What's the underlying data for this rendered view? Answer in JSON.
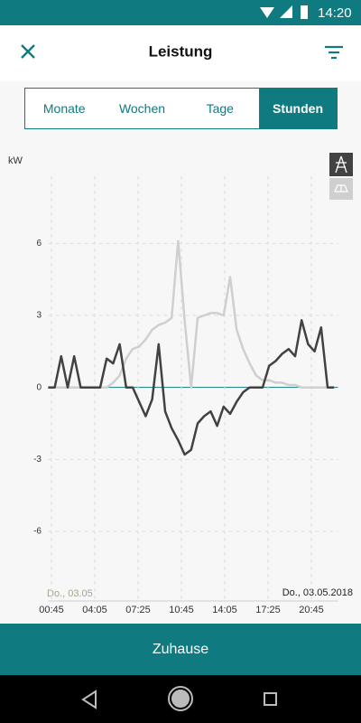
{
  "status": {
    "time": "14:20"
  },
  "header": {
    "title": "Leistung"
  },
  "tabs": {
    "items": [
      "Monate",
      "Wochen",
      "Tage",
      "Stunden"
    ],
    "selected": 3
  },
  "chart_data": {
    "type": "line",
    "y_label": "kW",
    "start_date_label": "Do., 03.05",
    "end_date_label": "Do., 03.05.2018",
    "x": [
      0.5,
      1.0,
      1.5,
      2.0,
      2.5,
      3.0,
      3.5,
      4.0,
      4.5,
      5.0,
      5.5,
      6.0,
      6.5,
      7.0,
      7.5,
      8.0,
      8.5,
      9.0,
      9.5,
      10.0,
      10.5,
      11.0,
      11.5,
      12.0,
      12.5,
      13.0,
      13.5,
      14.0,
      14.5,
      15.0,
      15.5,
      16.0,
      16.5,
      17.0,
      17.5,
      18.0,
      18.5,
      19.0,
      19.5,
      20.0,
      20.5,
      21.0,
      21.5,
      22.0,
      22.5
    ],
    "xlim": [
      0.5,
      22.8
    ],
    "xticks": [
      {
        "value": 0.75,
        "label": "00:45"
      },
      {
        "value": 4.083,
        "label": "04:05"
      },
      {
        "value": 7.417,
        "label": "07:25"
      },
      {
        "value": 10.75,
        "label": "10:45"
      },
      {
        "value": 14.083,
        "label": "14:05"
      },
      {
        "value": 17.417,
        "label": "17:25"
      },
      {
        "value": 20.75,
        "label": "20:45"
      }
    ],
    "ylim": [
      -8.9,
      8.8
    ],
    "yticks": [
      -6,
      -3,
      0,
      3,
      6
    ],
    "grid": true,
    "series": [
      {
        "color": "#cfcfcf",
        "values": [
          0,
          0,
          0,
          0,
          0,
          0,
          0,
          0,
          0,
          0,
          0.2,
          0.5,
          1.2,
          1.6,
          1.7,
          2.0,
          2.4,
          2.6,
          2.7,
          2.9,
          6.1,
          2.8,
          0,
          2.9,
          3.0,
          3.1,
          3.1,
          3.0,
          4.6,
          2.4,
          1.6,
          1.0,
          0.5,
          0.3,
          0.3,
          0.2,
          0.2,
          0.1,
          0.1,
          0,
          0,
          0,
          0,
          0,
          0
        ]
      },
      {
        "color": "#424242",
        "values": [
          0,
          0,
          1.3,
          0,
          1.3,
          0,
          0,
          0,
          0,
          1.2,
          1.0,
          1.8,
          0,
          0,
          -0.6,
          -1.2,
          -0.5,
          1.8,
          -1.0,
          -1.7,
          -2.2,
          -2.8,
          -2.6,
          -1.5,
          -1.2,
          -1.0,
          -1.6,
          -0.8,
          -1.1,
          -0.6,
          -0.2,
          0,
          0,
          0,
          0.9,
          1.1,
          1.4,
          1.6,
          1.3,
          2.8,
          1.8,
          1.5,
          2.5,
          0,
          0
        ]
      }
    ]
  },
  "footer": {
    "button": "Zuhause"
  }
}
